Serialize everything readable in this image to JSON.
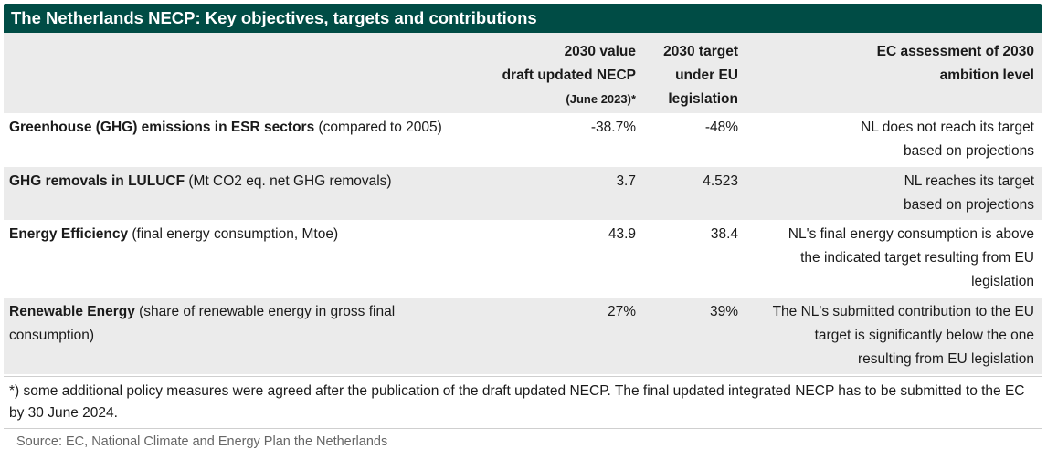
{
  "title": "The Netherlands NECP: Key objectives, targets and contributions",
  "header": {
    "col2_line1": "2030 value",
    "col2_line2": "draft updated NECP",
    "col2_line3": "(June 2023)*",
    "col3_line1": "2030 target",
    "col3_line2": "under EU",
    "col3_line3": "legislation",
    "col4_line1": "EC assessment of 2030",
    "col4_line2": "ambition level"
  },
  "rows": [
    {
      "name_bold": "Greenhouse (GHG) emissions in ESR sectors",
      "name_rest": " (compared to 2005)",
      "value": "-38.7%",
      "target": "-48%",
      "assessment": "NL does not reach its target based on projections"
    },
    {
      "name_bold": "GHG removals in LULUCF",
      "name_rest": " (Mt CO2 eq. net GHG removals)",
      "value": "3.7",
      "target": "4.523",
      "assessment": "NL reaches its target based on projections"
    },
    {
      "name_bold": "Energy Efficiency",
      "name_rest": " (final energy consumption, Mtoe)",
      "value": "43.9",
      "target": "38.4",
      "assessment": "NL's final energy consumption is above the indicated target resulting from EU legislation"
    },
    {
      "name_bold": "Renewable Energy",
      "name_rest": " (share of renewable energy in gross final consumption)",
      "value": "27%",
      "target": "39%",
      "assessment": "The NL's submitted contribution to the EU target is significantly below the one resulting from EU legislation"
    }
  ],
  "footnote": "*) some additional policy measures were agreed after the publication of the draft updated NECP. The final updated integrated NECP has to be submitted to the EC by 30 June 2024.",
  "source": "Source: EC, National Climate and Energy Plan the Netherlands",
  "colors": {
    "title_bg": "#004c45",
    "shade": "#ebebeb",
    "source_text": "#666666"
  }
}
